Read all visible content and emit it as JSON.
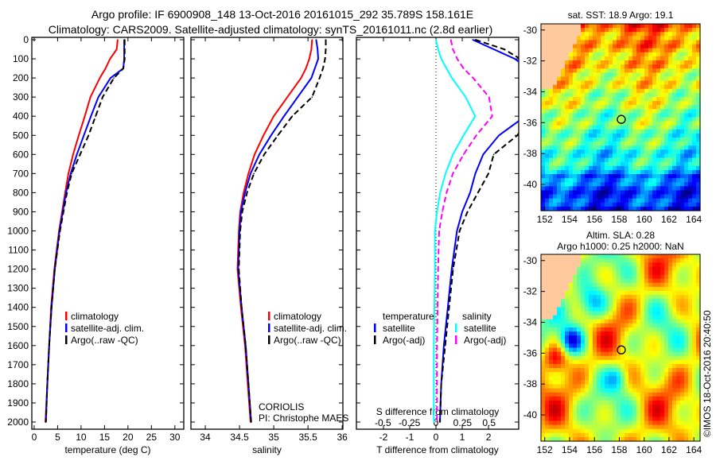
{
  "title_line1": "Argo profile: IF 6900908_148 13-Oct-2016 20161015_292 35.789S 158.161E",
  "title_line2": "Climatology: CARS2009. Satellite-adjusted climatology: synTS_20161011.nc (2.8d earlier)",
  "credit": "©IMOS 18-Oct-2016 20:40:50",
  "colors": {
    "climatology": "#ff0000",
    "satellite": "#0000ff",
    "argo": "#000000",
    "sal_satellite": "#00ffff",
    "sal_argo": "#ff00ff"
  },
  "chart_data": [
    {
      "type": "line",
      "id": "temperature",
      "xlabel": "temperature (deg C)",
      "ylabel": "",
      "xlim": [
        -0.5,
        31.9
      ],
      "ylim": [
        2000,
        0
      ],
      "xticks": [
        "0",
        "5",
        "10",
        "15",
        "20",
        "25",
        "30"
      ],
      "yticks": [
        "0",
        "100",
        "200",
        "300",
        "400",
        "500",
        "600",
        "700",
        "800",
        "900",
        "1000",
        "1100",
        "1200",
        "1300",
        "1400",
        "1500",
        "1600",
        "1700",
        "1800",
        "1900",
        "2000"
      ],
      "depth": [
        0,
        50,
        100,
        150,
        200,
        300,
        400,
        500,
        600,
        700,
        800,
        1000,
        1200,
        1400,
        1600,
        1800,
        2000
      ],
      "series": [
        {
          "name": "climatology",
          "color": "#ff0000",
          "values": [
            17.8,
            17.6,
            16.2,
            15.2,
            14,
            12,
            10.8,
            9.5,
            8.3,
            7.3,
            6.6,
            5.3,
            4.3,
            3.6,
            3.2,
            2.8,
            2.4
          ]
        },
        {
          "name": "satellite-adj. clim.",
          "color": "#0000ff",
          "values": [
            19.2,
            19.2,
            19.2,
            19,
            16.3,
            13.7,
            12.1,
            10.6,
            9.1,
            7.8,
            6.8,
            5.4,
            4.4,
            3.7,
            3.2,
            2.8,
            2.5
          ]
        },
        {
          "name": "Argo(..raw -QC)",
          "color": "#000000",
          "dashed": true,
          "values": [
            19.3,
            19.3,
            19.3,
            19,
            17,
            14.6,
            13.1,
            11.6,
            9.8,
            8,
            7,
            5.5,
            4.4,
            3.7,
            3.2,
            2.8,
            2.5
          ]
        }
      ]
    },
    {
      "type": "line",
      "id": "salinity",
      "xlabel": "salinity",
      "xlim": [
        33.79,
        36.01
      ],
      "ylim": [
        2000,
        0
      ],
      "xticks": [
        "34",
        "34.5",
        "35",
        "35.5",
        "36"
      ],
      "annotation": [
        "CORIOLIS",
        "PI: Christophe MAES"
      ],
      "depth": [
        0,
        50,
        100,
        150,
        200,
        300,
        400,
        500,
        600,
        700,
        800,
        900,
        1000,
        1200,
        1400,
        1600,
        1800,
        2000
      ],
      "series": [
        {
          "name": "climatology",
          "color": "#ff0000",
          "values": [
            35.56,
            35.55,
            35.52,
            35.47,
            35.4,
            35.2,
            35.0,
            34.85,
            34.72,
            34.63,
            34.56,
            34.51,
            34.49,
            34.47,
            34.52,
            34.58,
            34.62,
            34.66
          ]
        },
        {
          "name": "satellite-adj. clim.",
          "color": "#0000ff",
          "values": [
            35.62,
            35.64,
            35.65,
            35.6,
            35.55,
            35.35,
            35.15,
            34.96,
            34.79,
            34.66,
            34.58,
            34.52,
            34.5,
            34.48,
            34.53,
            34.59,
            34.63,
            34.67
          ]
        },
        {
          "name": "Argo(..raw -QC)",
          "color": "#000000",
          "dashed": true,
          "values": [
            35.76,
            35.76,
            35.75,
            35.72,
            35.67,
            35.56,
            35.27,
            35.06,
            34.86,
            34.71,
            34.61,
            34.54,
            34.51,
            34.49,
            34.53,
            34.59,
            34.63,
            34.67
          ]
        }
      ]
    },
    {
      "type": "line",
      "id": "difference",
      "xlabel": "T difference from climatology",
      "x2label": "S difference from climatology",
      "xlim": [
        -3.03,
        3.15
      ],
      "x2lim": [
        -0.75,
        0.78
      ],
      "ylim": [
        2000,
        0
      ],
      "xticks": [
        "-2",
        "-1",
        "0",
        "1",
        "2"
      ],
      "x2ticks": [
        "-0.5",
        "-0.25",
        "0",
        "0.25",
        "0.5"
      ],
      "legend_titles": [
        "temperature",
        "salinity"
      ],
      "depth": [
        0,
        50,
        100,
        150,
        200,
        300,
        400,
        500,
        600,
        700,
        800,
        900,
        1000,
        1200,
        1400,
        1600,
        1800,
        2000
      ],
      "series": [
        {
          "name": "satellite",
          "group": "temperature",
          "color": "#0000ff",
          "values": [
            1.4,
            2.2,
            3.0,
            3.5,
            3.6,
            3.6,
            3.4,
            2.4,
            1.8,
            1.5,
            1.3,
            1.0,
            0.8,
            0.6,
            0.45,
            0.3,
            0.2,
            0.15
          ]
        },
        {
          "name": "Argo(-adj)",
          "group": "temperature",
          "color": "#000000",
          "dashed": true,
          "values": [
            1.5,
            2.6,
            3.2,
            3.6,
            3.6,
            3.6,
            3.6,
            3.1,
            2.2,
            2.0,
            1.6,
            1.2,
            0.9,
            0.65,
            0.5,
            0.35,
            0.2,
            0.15
          ]
        },
        {
          "name": "satellite",
          "group": "salinity",
          "color": "#00ffff",
          "values": [
            0,
            0.02,
            0.05,
            0.1,
            0.15,
            0.28,
            0.37,
            0.26,
            0.16,
            0.09,
            0.04,
            0.01,
            -0.01,
            -0.01,
            -0.015,
            -0.02,
            -0.02,
            -0.02
          ]
        },
        {
          "name": "Argo(-adj)",
          "group": "salinity",
          "color": "#ff00ff",
          "dashed": true,
          "values": [
            0.14,
            0.16,
            0.2,
            0.26,
            0.35,
            0.5,
            0.53,
            0.38,
            0.26,
            0.16,
            0.1,
            0.06,
            0.03,
            0.02,
            0.015,
            0.01,
            0.01,
            0.01
          ]
        }
      ]
    },
    {
      "type": "heatmap",
      "id": "sst-map",
      "title": "sat. SST: 18.9 Argo: 19.1",
      "xticks": [
        "152",
        "154",
        "156",
        "158",
        "160",
        "162",
        "164"
      ],
      "yticks": [
        "-30",
        "-32",
        "-34",
        "-36",
        "-38",
        "-40"
      ],
      "xlim": [
        151.7,
        164.5
      ],
      "ylim": [
        -41.7,
        -29.6
      ],
      "marker": {
        "lon": 158.161,
        "lat": -35.789
      }
    },
    {
      "type": "heatmap",
      "id": "sla-map",
      "title": "Altim. SLA: 0.28",
      "subtitle": "Argo h1000: 0.25 h2000: NaN",
      "xticks": [
        "152",
        "154",
        "156",
        "158",
        "160",
        "162",
        "164"
      ],
      "yticks": [
        "-30",
        "-32",
        "-34",
        "-36",
        "-38",
        "-40"
      ],
      "xlim": [
        151.7,
        164.5
      ],
      "ylim": [
        -41.7,
        -29.6
      ],
      "marker": {
        "lon": 158.161,
        "lat": -35.789
      }
    }
  ]
}
